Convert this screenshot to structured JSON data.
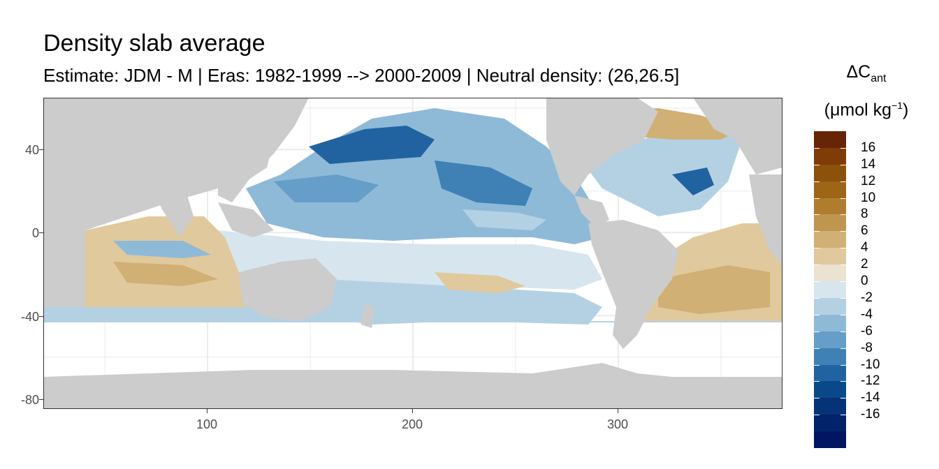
{
  "title": "Density slab average",
  "subtitle": "Estimate: JDM - M | Eras: 1982-1999 --> 2000-2009 | Neutral density: (26,26.5]",
  "legend": {
    "title_main": "ΔC",
    "title_sub": "ant",
    "unit_pre": "(μmol kg",
    "unit_sup": "−1",
    "unit_post": ")",
    "colors": [
      "#662506",
      "#7f3b08",
      "#8c510a",
      "#9c6616",
      "#b07d2f",
      "#bf9650",
      "#d0b074",
      "#e0c99c",
      "#ebe2d2",
      "#d7e6ee",
      "#b4d1e4",
      "#8ebad8",
      "#659ec8",
      "#3f80b5",
      "#2163a0",
      "#0a4989",
      "#053377",
      "#02226a",
      "#021563"
    ],
    "labels": [
      "16",
      "14",
      "12",
      "10",
      "8",
      "6",
      "4",
      "2",
      "0",
      "-2",
      "-4",
      "-6",
      "-8",
      "-10",
      "-12",
      "-14",
      "-16"
    ]
  },
  "map": {
    "land_color": "#cccccc",
    "grid_color": "#ebebeb",
    "x_ticks": [
      "100",
      "200",
      "300"
    ],
    "y_ticks": [
      "40",
      "0",
      "-40",
      "-80"
    ]
  },
  "chart_data": {
    "type": "heatmap",
    "title": "Density slab average",
    "subtitle": "Estimate: JDM - M | Eras: 1982-1999 --> 2000-2009 | Neutral density: (26,26.5]",
    "xlabel": "",
    "ylabel": "",
    "xlim": [
      20,
      380
    ],
    "ylim": [
      -85,
      65
    ],
    "x_ticks": [
      100,
      200,
      300
    ],
    "y_ticks": [
      40,
      0,
      -40,
      -80
    ],
    "colorbar_title": "ΔCant (μmol kg−1)",
    "colorbar_breaks": [
      16,
      14,
      12,
      10,
      8,
      6,
      4,
      2,
      0,
      -2,
      -4,
      -6,
      -8,
      -10,
      -12,
      -14,
      -16
    ],
    "legend_position": "right",
    "grid": true
  }
}
